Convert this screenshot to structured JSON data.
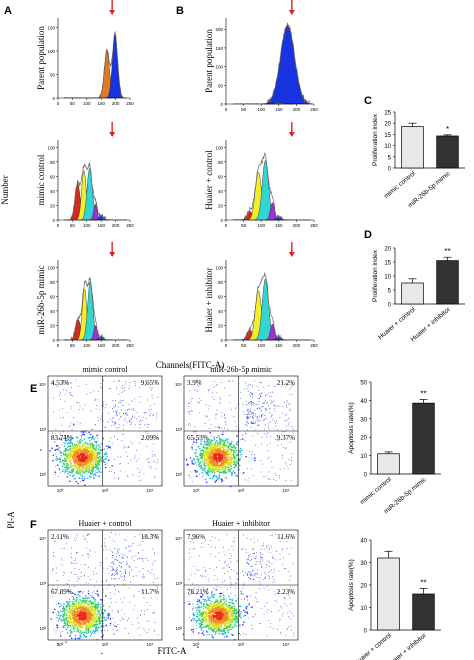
{
  "chart_data": [
    {
      "panel": "A",
      "type": "histogram",
      "ylabel": "Number",
      "xlabel": "Channels(FITC-A)",
      "xlim": [
        0,
        250
      ],
      "xticks": [
        "0",
        "50",
        "100",
        "150",
        "200",
        "250"
      ],
      "subplots": [
        {
          "label": "Parent population",
          "yticks": [
            "0",
            "50",
            "100",
            "150"
          ],
          "ylim": [
            0,
            170
          ]
        },
        {
          "label": "mimic control",
          "yticks": [
            "0",
            "20",
            "40",
            "60",
            "80",
            "100"
          ],
          "ylim": [
            0,
            110
          ]
        },
        {
          "label": "miR-26b-5p mimic",
          "yticks": [
            "0",
            "20",
            "40",
            "60",
            "80",
            "100"
          ],
          "ylim": [
            0,
            110
          ]
        }
      ]
    },
    {
      "panel": "B",
      "type": "histogram",
      "xlim": [
        0,
        250
      ],
      "xticks": [
        "0",
        "50",
        "100",
        "150",
        "200",
        "250"
      ],
      "subplots": [
        {
          "label": "Parent population",
          "yticks": [
            "0",
            "50",
            "100",
            "150",
            "200"
          ],
          "ylim": [
            0,
            230
          ]
        },
        {
          "label": "Huaier + control",
          "yticks": [
            "0",
            "20",
            "40",
            "60",
            "80",
            "100"
          ],
          "ylim": [
            0,
            110
          ]
        },
        {
          "label": "Huaier + inhibitor",
          "yticks": [
            "0",
            "20",
            "40",
            "60",
            "80",
            "100"
          ],
          "ylim": [
            0,
            110
          ]
        }
      ]
    },
    {
      "panel": "C",
      "type": "bar",
      "ylabel": "Proliferation index",
      "categories": [
        "mimic control",
        "miR-26b-5p mimic"
      ],
      "values": [
        18.5,
        14.3
      ],
      "errors": [
        1.5,
        0.5
      ],
      "colors": [
        "#e8e8e8",
        "#333333"
      ],
      "significance": [
        "",
        "*"
      ],
      "ylim": [
        0,
        25
      ],
      "yticks": [
        "0",
        "5",
        "10",
        "15",
        "20",
        "25"
      ]
    },
    {
      "panel": "D",
      "type": "bar",
      "ylabel": "Proliferation index",
      "categories": [
        "Huaier + control",
        "Huaier + inhibitor"
      ],
      "values": [
        7.5,
        15.5
      ],
      "errors": [
        1.5,
        1.2
      ],
      "colors": [
        "#e8e8e8",
        "#333333"
      ],
      "significance": [
        "",
        "**"
      ],
      "ylim": [
        0,
        20
      ],
      "yticks": [
        "0",
        "5",
        "10",
        "15",
        "20"
      ]
    },
    {
      "panel": "E",
      "type": "scatter",
      "ylabel": "PI-A",
      "plots": [
        {
          "title": "mimic control",
          "quadrants": [
            "4.53%",
            "9.65%",
            "83.74%",
            "2.09%"
          ]
        },
        {
          "title": "miR-26b-5p mimic",
          "quadrants": [
            "3.9%",
            "21.2%",
            "65.53%",
            "9.37%"
          ]
        }
      ]
    },
    {
      "panel": "F",
      "type": "scatter",
      "xlabel": "FITC-A",
      "plots": [
        {
          "title": "Huaier + control",
          "quadrants": [
            "2.11%",
            "18.3%",
            "67.89%",
            "11.7%"
          ]
        },
        {
          "title": "Huaier + inhibitor",
          "quadrants": [
            "7.96%",
            "11.6%",
            "78.21%",
            "2.23%"
          ]
        }
      ]
    },
    {
      "panel": "E-bar",
      "type": "bar",
      "ylabel": "Apoptosis rate(%)",
      "categories": [
        "mimic control",
        "miR-26b-5p mimic"
      ],
      "values": [
        11,
        38.5
      ],
      "errors": [
        1,
        2
      ],
      "colors": [
        "#e8e8e8",
        "#333333"
      ],
      "significance": [
        "",
        "**"
      ],
      "ylim": [
        0,
        50
      ],
      "yticks": [
        "0",
        "10",
        "20",
        "30",
        "40",
        "50"
      ]
    },
    {
      "panel": "F-bar",
      "type": "bar",
      "ylabel": "Apoptosis rate(%)",
      "categories": [
        "Huaier + control",
        "Huaier + inhibitor"
      ],
      "values": [
        32,
        16
      ],
      "errors": [
        3,
        2.5
      ],
      "colors": [
        "#e8e8e8",
        "#333333"
      ],
      "significance": [
        "",
        "**"
      ],
      "ylim": [
        0,
        40
      ],
      "yticks": [
        "0",
        "10",
        "20",
        "30",
        "40"
      ]
    }
  ],
  "scatter_axis_ticks": [
    "10²",
    "10³",
    "10⁴"
  ],
  "peak_colors": {
    "red": "#d42a1e",
    "orange": "#e07a22",
    "yellow": "#f2ee2a",
    "cyan": "#33d4d4",
    "purple": "#a030d0",
    "blue": "#1833e0",
    "green": "#22aa33",
    "arrow": "#dd2222"
  }
}
